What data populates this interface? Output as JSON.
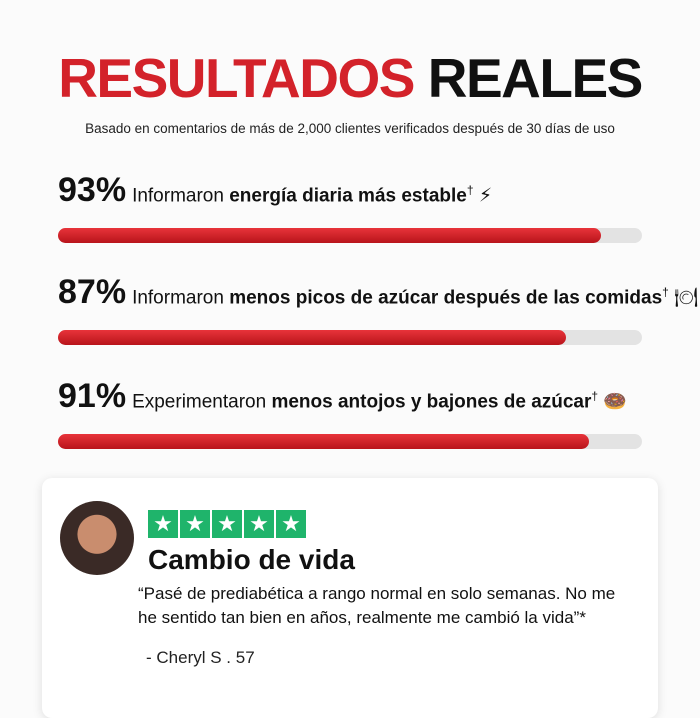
{
  "header": {
    "title_red": "RESULTADOS",
    "title_black": "REALES",
    "subtitle": "Basado en comentarios de más de 2,000 clientes verificados después de 30 días de uso"
  },
  "stats": [
    {
      "value": 93,
      "label": "93%",
      "prefix": "Informaron ",
      "bold": "energía diaria más estable",
      "mark": "†",
      "emoji": "⚡"
    },
    {
      "value": 87,
      "label": "87%",
      "prefix": "Informaron ",
      "bold": "menos picos de azúcar después de las comidas",
      "mark": "†",
      "emoji": "🍽"
    },
    {
      "value": 91,
      "label": "91%",
      "prefix": "Experimentaron ",
      "bold": "menos antojos y bajones de azúcar",
      "mark": "†",
      "emoji": "🍩"
    }
  ],
  "review": {
    "rating": 5,
    "title": "Cambio de vida",
    "quote": [
      "“Pasé de prediabética a rango normal en solo semanas. No me",
      "he sentido tan bien en años, realmente me cambió la vida”*"
    ],
    "author": "- Cheryl S . 57"
  }
}
